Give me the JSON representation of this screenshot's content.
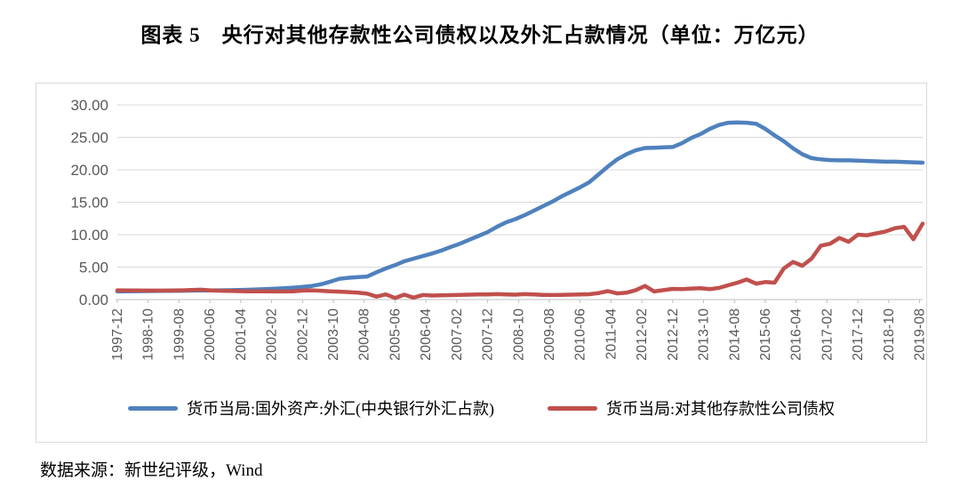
{
  "page": {
    "title": "图表 5　央行对其他存款性公司债权以及外汇占款情况（单位：万亿元）",
    "source_note": "数据来源：新世纪评级，Wind"
  },
  "chart_data": {
    "type": "line",
    "title": "央行对其他存款性公司债权以及外汇占款情况",
    "unit": "万亿元",
    "grid": true,
    "legend_position": "bottom",
    "colors": {
      "gridline": "#d9d9d9",
      "axis": "#bfbfbf",
      "tick_text": "#595959"
    },
    "y_axis": {
      "min": 0,
      "max": 30,
      "tick_interval": 5,
      "tick_labels": [
        "0.00",
        "5.00",
        "10.00",
        "15.00",
        "20.00",
        "25.00",
        "30.00"
      ]
    },
    "x_axis": {
      "start": "1997-12",
      "end": "2019-09",
      "label_every_months": 10,
      "tick_labels": [
        "1997-12",
        "1998-10",
        "1999-08",
        "2000-06",
        "2001-04",
        "2002-02",
        "2002-12",
        "2003-10",
        "2004-08",
        "2005-06",
        "2006-04",
        "2007-02",
        "2007-12",
        "2008-10",
        "2009-08",
        "2010-06",
        "2011-04",
        "2012-02",
        "2012-12",
        "2013-10",
        "2014-08",
        "2015-06",
        "2016-04",
        "2017-02",
        "2017-12",
        "2018-10",
        "2019-08"
      ]
    },
    "x_quarterly": [
      "1997-12",
      "1998-03",
      "1998-06",
      "1998-09",
      "1998-12",
      "1999-03",
      "1999-06",
      "1999-09",
      "1999-12",
      "2000-03",
      "2000-06",
      "2000-09",
      "2000-12",
      "2001-03",
      "2001-06",
      "2001-09",
      "2001-12",
      "2002-03",
      "2002-06",
      "2002-09",
      "2002-12",
      "2003-03",
      "2003-06",
      "2003-09",
      "2003-12",
      "2004-03",
      "2004-06",
      "2004-09",
      "2004-12",
      "2005-03",
      "2005-06",
      "2005-09",
      "2005-12",
      "2006-03",
      "2006-06",
      "2006-09",
      "2006-12",
      "2007-03",
      "2007-06",
      "2007-09",
      "2007-12",
      "2008-03",
      "2008-06",
      "2008-09",
      "2008-12",
      "2009-03",
      "2009-06",
      "2009-09",
      "2009-12",
      "2010-03",
      "2010-06",
      "2010-09",
      "2010-12",
      "2011-03",
      "2011-06",
      "2011-09",
      "2011-12",
      "2012-03",
      "2012-06",
      "2012-09",
      "2012-12",
      "2013-03",
      "2013-06",
      "2013-09",
      "2013-12",
      "2014-03",
      "2014-06",
      "2014-09",
      "2014-12",
      "2015-03",
      "2015-06",
      "2015-09",
      "2015-12",
      "2016-03",
      "2016-06",
      "2016-09",
      "2016-12",
      "2017-03",
      "2017-06",
      "2017-09",
      "2017-12",
      "2018-03",
      "2018-06",
      "2018-09",
      "2018-12",
      "2019-03",
      "2019-06",
      "2019-09"
    ],
    "series": [
      {
        "name": "货币当局:国外资产:外汇(中央银行外汇占款)",
        "color": "#4F81BD",
        "values": [
          1.25,
          1.27,
          1.29,
          1.3,
          1.32,
          1.33,
          1.34,
          1.36,
          1.38,
          1.4,
          1.41,
          1.42,
          1.44,
          1.47,
          1.51,
          1.56,
          1.62,
          1.68,
          1.75,
          1.84,
          1.95,
          2.1,
          2.35,
          2.75,
          3.2,
          3.35,
          3.45,
          3.55,
          4.2,
          4.8,
          5.3,
          5.9,
          6.3,
          6.7,
          7.1,
          7.55,
          8.1,
          8.6,
          9.2,
          9.8,
          10.4,
          11.2,
          11.9,
          12.4,
          13.0,
          13.7,
          14.4,
          15.1,
          15.9,
          16.6,
          17.3,
          18.1,
          19.3,
          20.5,
          21.6,
          22.4,
          23.0,
          23.35,
          23.4,
          23.45,
          23.5,
          24.1,
          24.9,
          25.5,
          26.3,
          26.9,
          27.25,
          27.3,
          27.25,
          27.1,
          26.3,
          25.3,
          24.4,
          23.3,
          22.4,
          21.8,
          21.6,
          21.5,
          21.45,
          21.45,
          21.4,
          21.35,
          21.3,
          21.25,
          21.25,
          21.2,
          21.15,
          21.1
        ]
      },
      {
        "name": "货币当局:对其他存款性公司债权",
        "color": "#C0504D",
        "values": [
          1.42,
          1.41,
          1.4,
          1.39,
          1.38,
          1.39,
          1.41,
          1.43,
          1.46,
          1.52,
          1.42,
          1.36,
          1.33,
          1.3,
          1.28,
          1.27,
          1.26,
          1.25,
          1.24,
          1.28,
          1.38,
          1.42,
          1.35,
          1.28,
          1.22,
          1.15,
          1.05,
          0.9,
          0.45,
          0.8,
          0.25,
          0.75,
          0.3,
          0.7,
          0.62,
          0.65,
          0.68,
          0.72,
          0.76,
          0.78,
          0.8,
          0.84,
          0.8,
          0.76,
          0.84,
          0.78,
          0.72,
          0.7,
          0.72,
          0.75,
          0.78,
          0.82,
          1.0,
          1.3,
          0.95,
          1.05,
          1.45,
          2.1,
          1.25,
          1.45,
          1.65,
          1.6,
          1.7,
          1.75,
          1.6,
          1.8,
          2.2,
          2.6,
          3.1,
          2.45,
          2.7,
          2.6,
          4.8,
          5.8,
          5.2,
          6.3,
          8.3,
          8.6,
          9.5,
          8.9,
          10.0,
          9.9,
          10.2,
          10.5,
          11.0,
          11.2,
          9.3,
          11.7
        ]
      }
    ]
  }
}
